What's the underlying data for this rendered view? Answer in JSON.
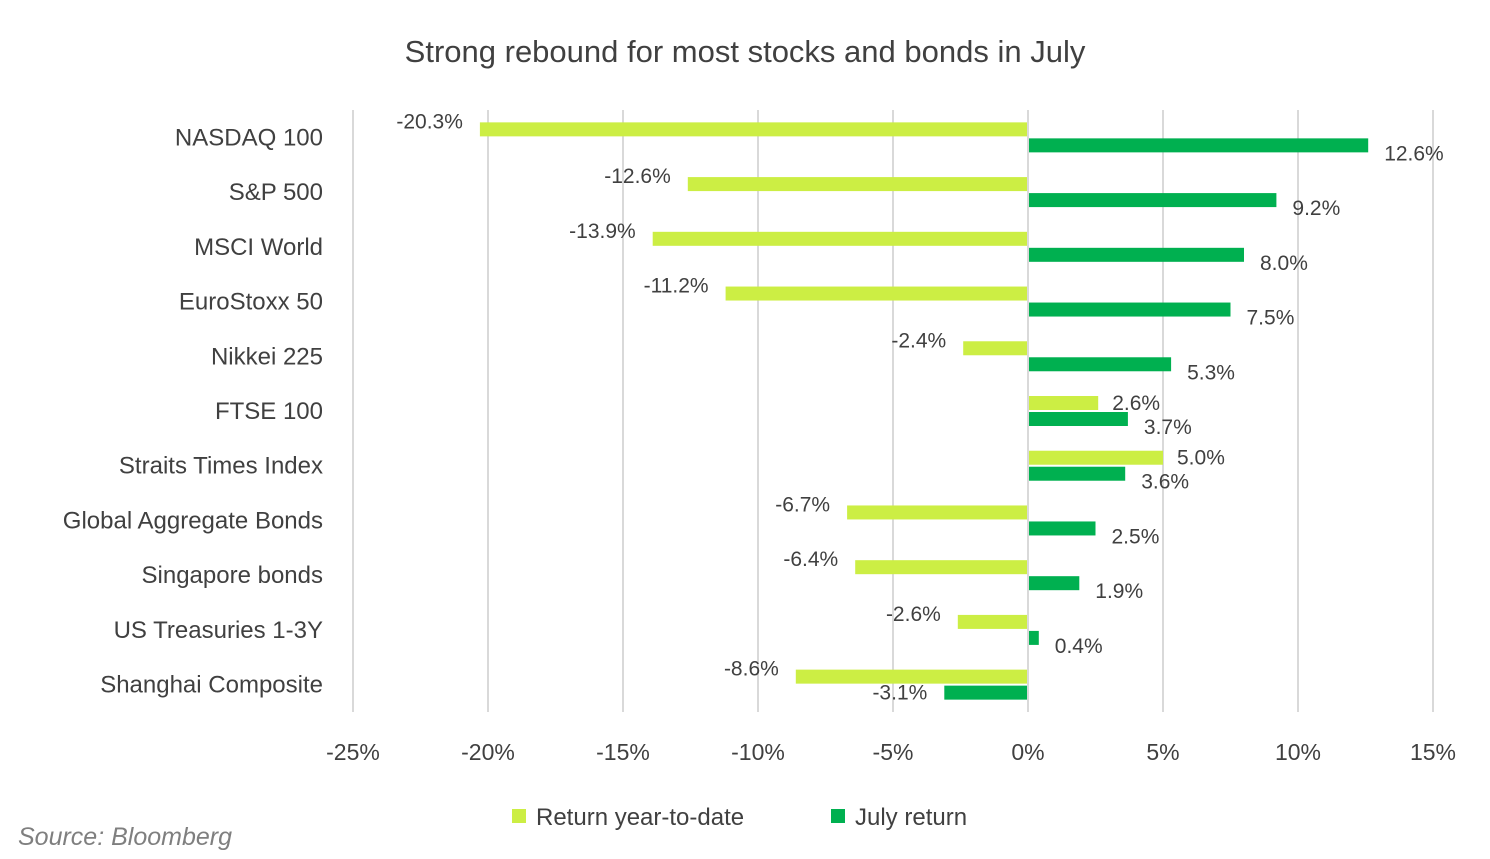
{
  "chart_data": {
    "type": "bar",
    "orientation": "horizontal",
    "title": "Strong rebound for most stocks and bonds in July",
    "categories": [
      "NASDAQ 100",
      "S&P 500",
      "MSCI World",
      "EuroStoxx 50",
      "Nikkei 225",
      "FTSE 100",
      "Straits Times Index",
      "Global Aggregate Bonds",
      "Singapore bonds",
      "US Treasuries 1-3Y",
      "Shanghai Composite"
    ],
    "series": [
      {
        "name": "Return year-to-date",
        "color": "#ccee44",
        "values": [
          -20.3,
          -12.6,
          -13.9,
          -11.2,
          -2.4,
          2.6,
          5.0,
          -6.7,
          -6.4,
          -2.6,
          -8.6
        ],
        "labels": [
          "-20.3%",
          "-12.6%",
          "-13.9%",
          "-11.2%",
          "-2.4%",
          "2.6%",
          "5.0%",
          "-6.7%",
          "-6.4%",
          "-2.6%",
          "-8.6%"
        ]
      },
      {
        "name": "July return",
        "color": "#00b050",
        "values": [
          12.6,
          9.2,
          8.0,
          7.5,
          5.3,
          3.7,
          3.6,
          2.5,
          1.9,
          0.4,
          -3.1
        ],
        "labels": [
          "12.6%",
          "9.2%",
          "8.0%",
          "7.5%",
          "5.3%",
          "3.7%",
          "3.6%",
          "2.5%",
          "1.9%",
          "0.4%",
          "-3.1%"
        ]
      }
    ],
    "xlim": [
      -25,
      15
    ],
    "xticks": [
      -25,
      -20,
      -15,
      -10,
      -5,
      0,
      5,
      10,
      15
    ],
    "xtick_labels": [
      "-25%",
      "-20%",
      "-15%",
      "-10%",
      "-5%",
      "0%",
      "5%",
      "10%",
      "15%"
    ],
    "grid": true,
    "legend": "bottom"
  },
  "source": "Source: Bloomberg"
}
